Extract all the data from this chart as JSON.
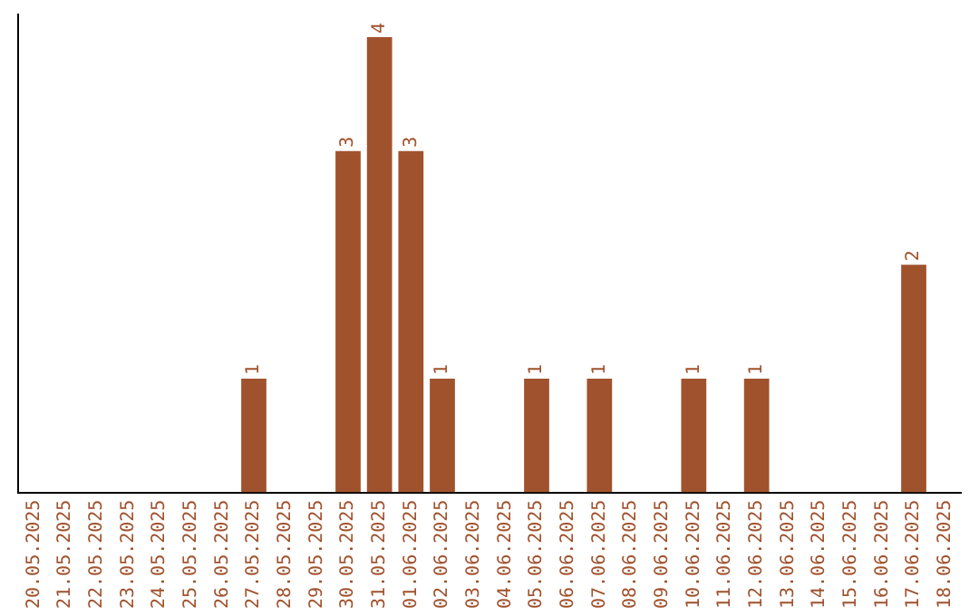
{
  "chart_data": {
    "type": "bar",
    "categories": [
      "20.05.2025",
      "21.05.2025",
      "22.05.2025",
      "23.05.2025",
      "24.05.2025",
      "25.05.2025",
      "26.05.2025",
      "27.05.2025",
      "28.05.2025",
      "29.05.2025",
      "30.05.2025",
      "31.05.2025",
      "01.06.2025",
      "02.06.2025",
      "03.06.2025",
      "04.06.2025",
      "05.06.2025",
      "06.06.2025",
      "07.06.2025",
      "08.06.2025",
      "09.06.2025",
      "10.06.2025",
      "11.06.2025",
      "12.06.2025",
      "13.06.2025",
      "14.06.2025",
      "15.06.2025",
      "16.06.2025",
      "17.06.2025",
      "18.06.2025"
    ],
    "values": [
      0,
      0,
      0,
      0,
      0,
      0,
      0,
      1,
      0,
      0,
      3,
      4,
      3,
      1,
      0,
      0,
      1,
      0,
      1,
      0,
      0,
      1,
      0,
      1,
      0,
      0,
      0,
      0,
      2,
      0
    ],
    "value_labels": [
      null,
      null,
      null,
      null,
      null,
      null,
      null,
      "1",
      null,
      null,
      "3",
      "4",
      "3",
      "1",
      null,
      null,
      "1",
      null,
      "1",
      null,
      null,
      "1",
      null,
      "1",
      null,
      null,
      null,
      null,
      "2",
      null
    ],
    "color": "#a0522d",
    "ylim": [
      0,
      4.2
    ],
    "tick_labels": "x",
    "grid": false,
    "legend": false
  }
}
